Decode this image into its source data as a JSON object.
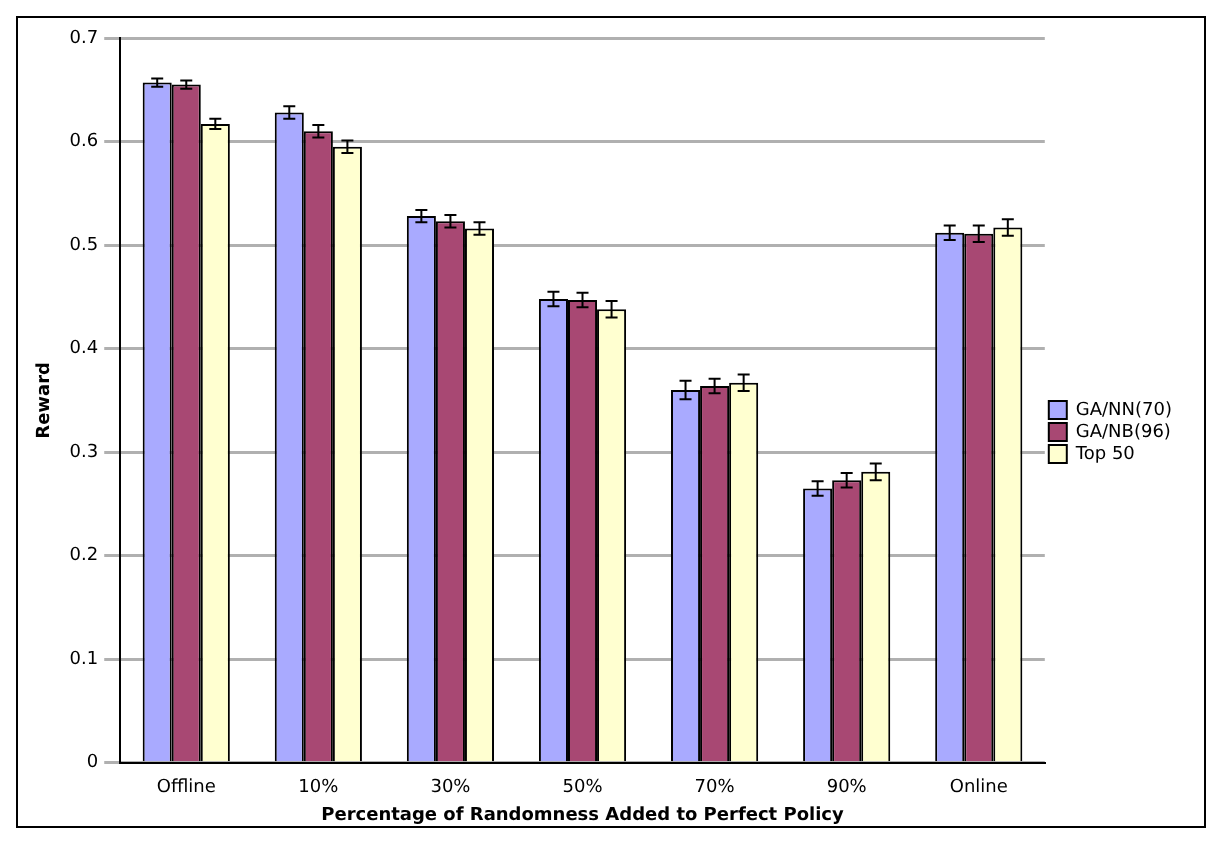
{
  "chart_data": {
    "type": "bar",
    "xlabel": "Percentage of Randomness Added to Perfect Policy",
    "ylabel": "Reward",
    "categories": [
      "Offline",
      "10%",
      "30%",
      "50%",
      "70%",
      "90%",
      "Online"
    ],
    "series": [
      {
        "name": "GA/NN(70)",
        "color": "#a9aaff",
        "values": [
          0.657,
          0.628,
          0.528,
          0.448,
          0.36,
          0.265,
          0.512
        ],
        "errors": [
          0.004,
          0.006,
          0.006,
          0.007,
          0.009,
          0.007,
          0.007
        ]
      },
      {
        "name": "GA/NB(96)",
        "color": "#a84873",
        "values": [
          0.655,
          0.61,
          0.523,
          0.447,
          0.364,
          0.273,
          0.511
        ],
        "errors": [
          0.004,
          0.006,
          0.006,
          0.007,
          0.007,
          0.007,
          0.008
        ]
      },
      {
        "name": "Top 50",
        "color": "#ffffd0",
        "values": [
          0.617,
          0.595,
          0.516,
          0.438,
          0.367,
          0.281,
          0.517
        ],
        "errors": [
          0.005,
          0.006,
          0.006,
          0.008,
          0.008,
          0.008,
          0.008
        ]
      }
    ],
    "ylim": [
      0,
      0.7
    ],
    "yticks": [
      0,
      0.1,
      0.2,
      0.3,
      0.4,
      0.5,
      0.6,
      0.7
    ],
    "grid": "y",
    "legend": "right"
  }
}
